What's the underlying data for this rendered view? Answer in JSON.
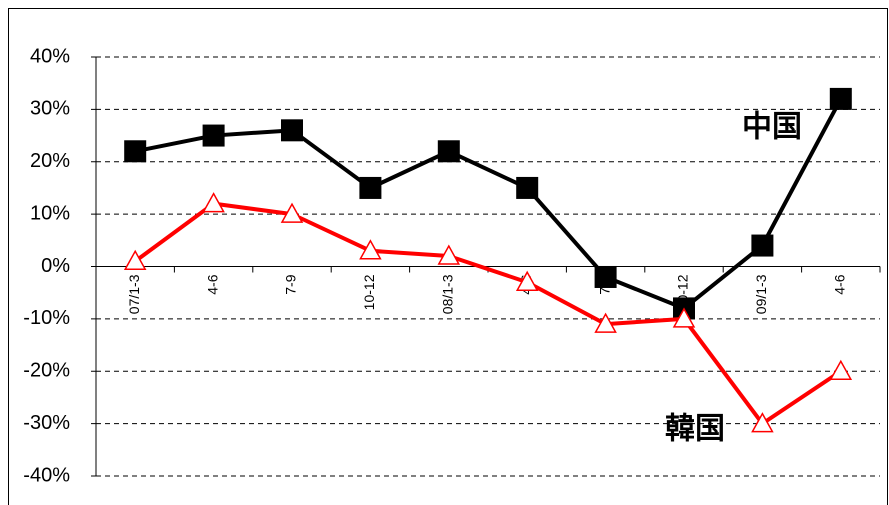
{
  "chart_data": {
    "type": "line",
    "categories": [
      "07/1-3",
      "4-6",
      "7-9",
      "10-12",
      "08/1-3",
      "4-6",
      "7-9",
      "10-12",
      "09/1-3",
      "4-6"
    ],
    "series": [
      {
        "name": "中国",
        "color": "#000000",
        "marker": "square",
        "values": [
          22,
          25,
          26,
          15,
          22,
          15,
          -2,
          -8,
          4,
          32
        ]
      },
      {
        "name": "韓国",
        "color": "#ff0000",
        "marker": "triangle",
        "values": [
          1,
          12,
          10,
          3,
          2,
          -3,
          -11,
          -10,
          -30,
          -20
        ]
      }
    ],
    "ylim": [
      -40,
      40
    ],
    "yticks": [
      {
        "value": -40,
        "label": "-40%"
      },
      {
        "value": -30,
        "label": "-30%"
      },
      {
        "value": -20,
        "label": "-20%"
      },
      {
        "value": -10,
        "label": "-10%"
      },
      {
        "value": 0,
        "label": "0%"
      },
      {
        "value": 10,
        "label": "10%"
      },
      {
        "value": 20,
        "label": "20%"
      },
      {
        "value": 30,
        "label": "30%"
      },
      {
        "value": 40,
        "label": "40%"
      }
    ],
    "grid": true
  }
}
